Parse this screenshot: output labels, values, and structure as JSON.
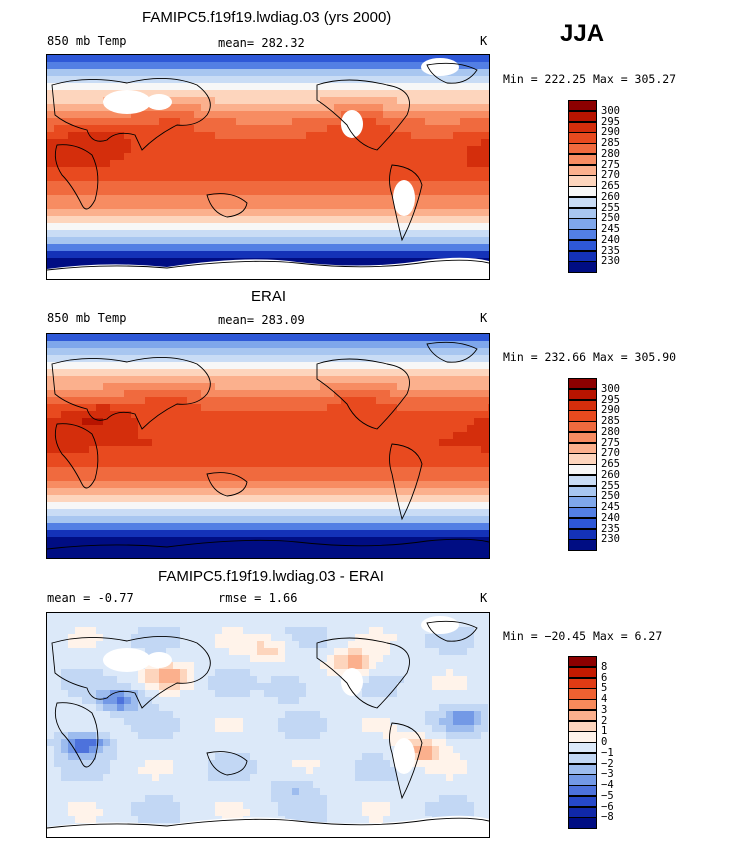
{
  "season": "JJA",
  "panels": [
    {
      "title": "FAMIPC5.f19f19.lwdiag.03 (yrs 2000)",
      "field": "850 mb Temp",
      "stat": "mean= 282.32",
      "units": "K",
      "minmax": "Min = 222.25 Max = 305.27",
      "kind": "abs",
      "levels": [
        "300",
        "295",
        "290",
        "285",
        "280",
        "275",
        "270",
        "265",
        "260",
        "255",
        "250",
        "245",
        "240",
        "235",
        "230"
      ],
      "colors": [
        "#8c0000",
        "#b81400",
        "#d42e0c",
        "#e84a1f",
        "#f06a3e",
        "#f78c62",
        "#fbb08d",
        "#fdd5bd",
        "#f7f7f7",
        "#c9dcf5",
        "#a8c6f0",
        "#7fa7eb",
        "#537fe4",
        "#2e58d7",
        "#1432b8",
        "#000d83"
      ]
    },
    {
      "title": "ERAI",
      "field": "850 mb Temp",
      "stat": "mean= 283.09",
      "units": "K",
      "minmax": "Min = 232.66 Max = 305.90",
      "kind": "abs",
      "levels": [
        "300",
        "295",
        "290",
        "285",
        "280",
        "275",
        "270",
        "265",
        "260",
        "255",
        "250",
        "245",
        "240",
        "235",
        "230"
      ],
      "colors": [
        "#8c0000",
        "#b81400",
        "#d42e0c",
        "#e84a1f",
        "#f06a3e",
        "#f78c62",
        "#fbb08d",
        "#fdd5bd",
        "#f7f7f7",
        "#c9dcf5",
        "#a8c6f0",
        "#7fa7eb",
        "#537fe4",
        "#2e58d7",
        "#1432b8",
        "#000d83"
      ]
    },
    {
      "title": "FAMIPC5.f19f19.lwdiag.03 - ERAI",
      "field": "mean =   -0.77",
      "stat": "rmse =    1.66",
      "units": "K",
      "minmax": "Min = −20.45 Max =   6.27",
      "kind": "diff",
      "levels": [
        "8",
        "6",
        "5",
        "4",
        "3",
        "2",
        "1",
        "0",
        "−1",
        "−2",
        "−3",
        "−4",
        "−5",
        "−6",
        "−8"
      ],
      "colors": [
        "#8c0000",
        "#c41a00",
        "#e03b14",
        "#ef6131",
        "#f78a5b",
        "#fbb08d",
        "#fdd5bd",
        "#fff3ea",
        "#dce9f9",
        "#c2d7f4",
        "#9dbcee",
        "#7399e6",
        "#4d72dc",
        "#2648c8",
        "#1028a8",
        "#000d83"
      ]
    }
  ],
  "chart_data": {
    "type": "heatmap",
    "variable": "850 mb Temp",
    "units": "K",
    "season": "JJA",
    "maps": [
      {
        "name": "FAMIPC5.f19f19.lwdiag.03 (yrs 2000)",
        "mean": 282.32,
        "min": 222.25,
        "max": 305.27,
        "contour_levels": [
          230,
          235,
          240,
          245,
          250,
          255,
          260,
          265,
          270,
          275,
          280,
          285,
          290,
          295,
          300
        ]
      },
      {
        "name": "ERAI",
        "mean": 283.09,
        "min": 232.66,
        "max": 305.9,
        "contour_levels": [
          230,
          235,
          240,
          245,
          250,
          255,
          260,
          265,
          270,
          275,
          280,
          285,
          290,
          295,
          300
        ]
      },
      {
        "name": "FAMIPC5.f19f19.lwdiag.03 - ERAI",
        "mean": -0.77,
        "rmse": 1.66,
        "min": -20.45,
        "max": 6.27,
        "contour_levels": [
          -8,
          -6,
          -5,
          -4,
          -3,
          -2,
          -1,
          0,
          1,
          2,
          3,
          4,
          5,
          6,
          8
        ]
      }
    ]
  }
}
